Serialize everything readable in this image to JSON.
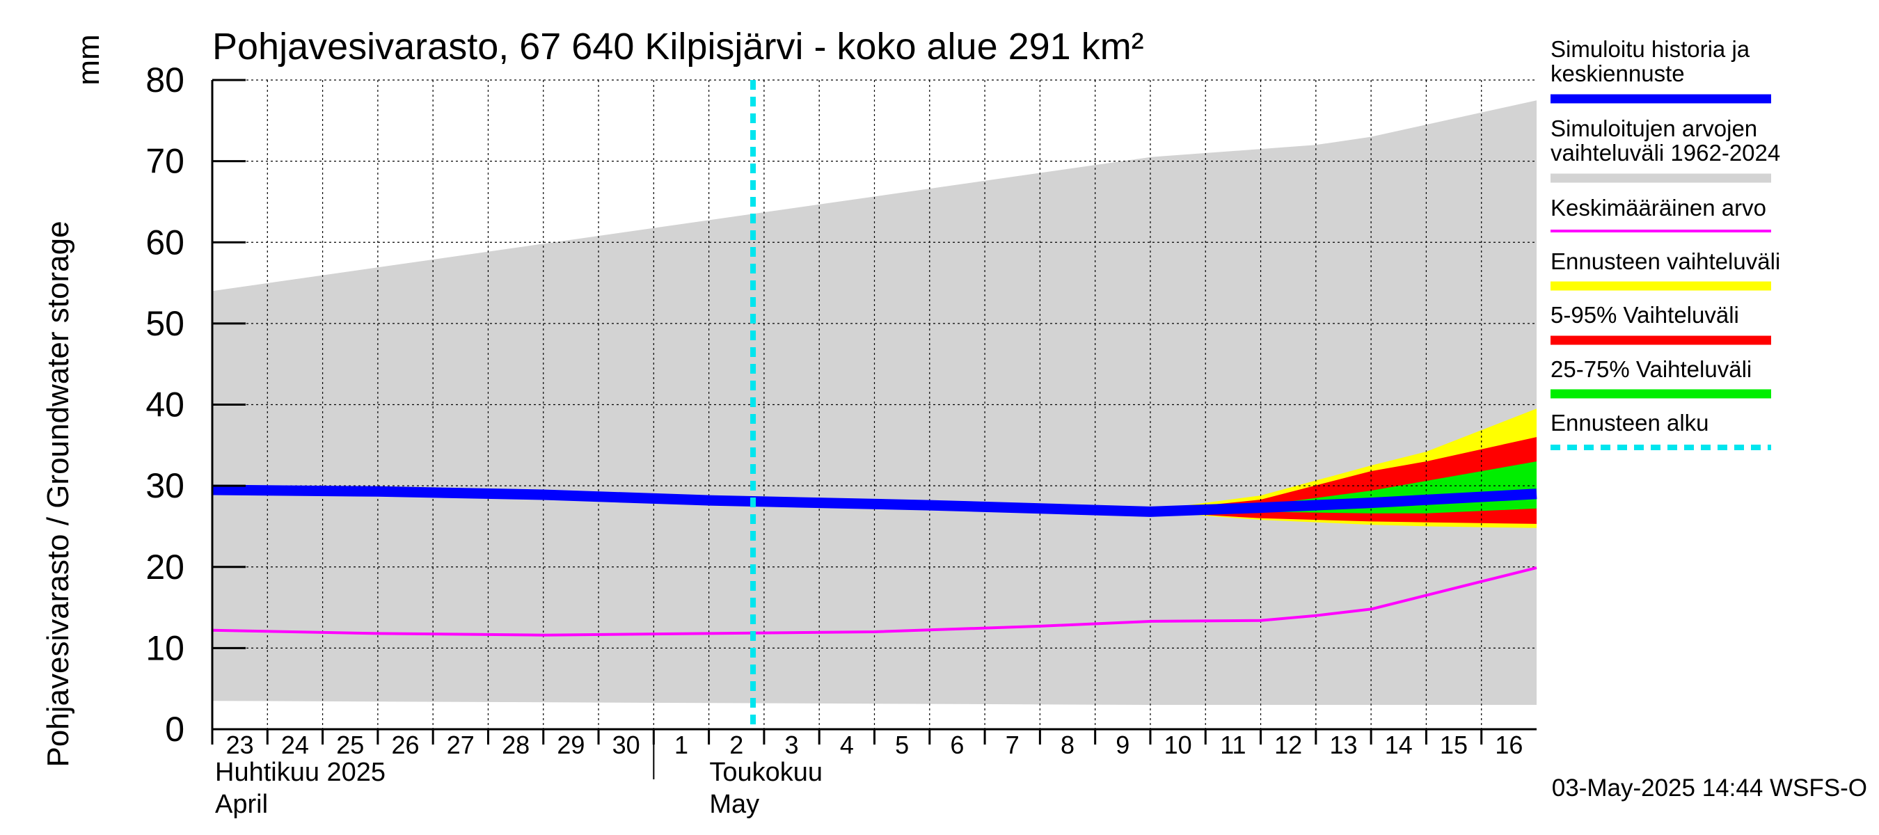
{
  "chart_data": {
    "type": "area",
    "title": "Pohjavesivarasto, 67 640 Kilpisjärvi - koko alue 291 km²",
    "ylabel": "Pohjavesivarasto / Groundwater storage",
    "yunit": "mm",
    "ylim": [
      0,
      80
    ],
    "yticks": [
      0,
      10,
      20,
      30,
      40,
      50,
      60,
      70,
      80
    ],
    "grid": true,
    "legend_position": "right",
    "x_days": [
      {
        "label": "23",
        "date": "2025-04-23"
      },
      {
        "label": "24",
        "date": "2025-04-24"
      },
      {
        "label": "25",
        "date": "2025-04-25"
      },
      {
        "label": "26",
        "date": "2025-04-26"
      },
      {
        "label": "27",
        "date": "2025-04-27"
      },
      {
        "label": "28",
        "date": "2025-04-28"
      },
      {
        "label": "29",
        "date": "2025-04-29"
      },
      {
        "label": "30",
        "date": "2025-04-30"
      },
      {
        "label": "1",
        "date": "2025-05-01"
      },
      {
        "label": "2",
        "date": "2025-05-02"
      },
      {
        "label": "3",
        "date": "2025-05-03"
      },
      {
        "label": "4",
        "date": "2025-05-04"
      },
      {
        "label": "5",
        "date": "2025-05-05"
      },
      {
        "label": "6",
        "date": "2025-05-06"
      },
      {
        "label": "7",
        "date": "2025-05-07"
      },
      {
        "label": "8",
        "date": "2025-05-08"
      },
      {
        "label": "9",
        "date": "2025-05-09"
      },
      {
        "label": "10",
        "date": "2025-05-10"
      },
      {
        "label": "11",
        "date": "2025-05-11"
      },
      {
        "label": "12",
        "date": "2025-05-12"
      },
      {
        "label": "13",
        "date": "2025-05-13"
      },
      {
        "label": "14",
        "date": "2025-05-14"
      },
      {
        "label": "15",
        "date": "2025-05-15"
      },
      {
        "label": "16",
        "date": "2025-05-16"
      }
    ],
    "month_labels": [
      {
        "fi": "Huhtikuu  2025",
        "en": "April",
        "start_date": "2025-04-23"
      },
      {
        "fi": "Toukokuu",
        "en": "May",
        "start_date": "2025-05-01"
      }
    ],
    "x_start": "2025-04-23",
    "x_end": "2025-05-17",
    "series": [
      {
        "name": "Simuloitujen arvojen vaihteluväli 1962-2024",
        "kind": "band",
        "color": "#d3d3d3",
        "x": [
          "2025-04-23",
          "2025-05-10",
          "2025-05-13",
          "2025-05-14",
          "2025-05-17"
        ],
        "lower": [
          3.5,
          3.0,
          3.0,
          3.0,
          3.0
        ],
        "upper": [
          54.0,
          70.5,
          72.0,
          73.0,
          77.5
        ]
      },
      {
        "name": "Ennusteen vaihteluväli",
        "kind": "band",
        "color": "#ffff00",
        "x": [
          "2025-05-10",
          "2025-05-12",
          "2025-05-14",
          "2025-05-15",
          "2025-05-17"
        ],
        "lower": [
          26.8,
          25.8,
          25.2,
          25.0,
          24.8
        ],
        "upper": [
          27.0,
          28.8,
          32.5,
          34.2,
          39.5
        ]
      },
      {
        "name": "5-95% Vaihteluväli",
        "kind": "band",
        "color": "#ff0000",
        "x": [
          "2025-05-10",
          "2025-05-12",
          "2025-05-14",
          "2025-05-15",
          "2025-05-17"
        ],
        "lower": [
          26.8,
          26.0,
          25.6,
          25.5,
          25.3
        ],
        "upper": [
          26.9,
          28.3,
          31.8,
          33.0,
          36.0
        ]
      },
      {
        "name": "25-75% Vaihteluväli",
        "kind": "band",
        "color": "#00ee00",
        "x": [
          "2025-05-10",
          "2025-05-12",
          "2025-05-14",
          "2025-05-15",
          "2025-05-17"
        ],
        "lower": [
          26.8,
          26.8,
          26.6,
          26.6,
          27.2
        ],
        "upper": [
          26.9,
          27.6,
          29.4,
          30.6,
          33.0
        ]
      },
      {
        "name": "Simuloitu historia ja keskiennuste",
        "kind": "line",
        "color": "#0000ff",
        "x": [
          "2025-04-23",
          "2025-04-26",
          "2025-04-29",
          "2025-05-02",
          "2025-05-06",
          "2025-05-10",
          "2025-05-12",
          "2025-05-14",
          "2025-05-17"
        ],
        "values": [
          29.5,
          29.3,
          28.9,
          28.2,
          27.6,
          26.8,
          27.3,
          27.9,
          29.0
        ]
      },
      {
        "name": "Keskimääräinen arvo",
        "kind": "line",
        "color": "#ff00ff",
        "x": [
          "2025-04-23",
          "2025-04-26",
          "2025-04-29",
          "2025-05-02",
          "2025-05-05",
          "2025-05-08",
          "2025-05-10",
          "2025-05-12",
          "2025-05-13",
          "2025-05-14",
          "2025-05-15",
          "2025-05-16",
          "2025-05-17"
        ],
        "values": [
          12.2,
          11.8,
          11.6,
          11.8,
          12.0,
          12.7,
          13.3,
          13.4,
          14.0,
          14.8,
          16.5,
          18.2,
          19.9
        ]
      }
    ],
    "forecast_start": {
      "name": "Ennusteen alku",
      "date": "2025-05-02",
      "color": "#00e5ee"
    },
    "legend": [
      {
        "label": "Simuloitu historia ja keskiennuste",
        "lines": [
          "Simuloitu historia ja",
          "keskiennuste"
        ],
        "color": "#0000ff",
        "style": "thick"
      },
      {
        "label": "Simuloitujen arvojen vaihteluväli 1962-2024",
        "lines": [
          "Simuloitujen arvojen",
          "vaihteluväli 1962-2024"
        ],
        "color": "#d3d3d3",
        "style": "thick"
      },
      {
        "label": "Keskimääräinen arvo",
        "lines": [
          "Keskimääräinen arvo"
        ],
        "color": "#ff00ff",
        "style": "thin"
      },
      {
        "label": "Ennusteen vaihteluväli",
        "lines": [
          "Ennusteen vaihteluväli"
        ],
        "color": "#ffff00",
        "style": "thick"
      },
      {
        "label": "5-95% Vaihteluväli",
        "lines": [
          "5-95% Vaihteluväli"
        ],
        "color": "#ff0000",
        "style": "thick"
      },
      {
        "label": "25-75% Vaihteluväli",
        "lines": [
          "25-75% Vaihteluväli"
        ],
        "color": "#00ee00",
        "style": "thick"
      },
      {
        "label": "Ennusteen alku",
        "lines": [
          "Ennusteen alku"
        ],
        "color": "#00e5ee",
        "style": "dashed"
      }
    ],
    "footer": "03-May-2025 14:44 WSFS-O"
  }
}
